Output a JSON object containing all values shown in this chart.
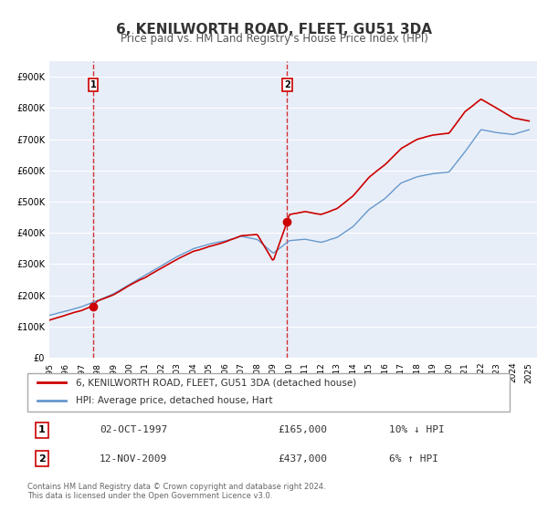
{
  "title": "6, KENILWORTH ROAD, FLEET, GU51 3DA",
  "subtitle": "Price paid vs. HM Land Registry's House Price Index (HPI)",
  "xlim": [
    1995.0,
    2025.5
  ],
  "ylim": [
    0,
    950000
  ],
  "yticks": [
    0,
    100000,
    200000,
    300000,
    400000,
    500000,
    600000,
    700000,
    800000,
    900000
  ],
  "ytick_labels": [
    "£0",
    "£100K",
    "£200K",
    "£300K",
    "£400K",
    "£500K",
    "£600K",
    "£700K",
    "£800K",
    "£900K"
  ],
  "xtick_years": [
    1995,
    1996,
    1997,
    1998,
    1999,
    2000,
    2001,
    2002,
    2003,
    2004,
    2005,
    2006,
    2007,
    2008,
    2009,
    2010,
    2011,
    2012,
    2013,
    2014,
    2015,
    2016,
    2017,
    2018,
    2019,
    2020,
    2021,
    2022,
    2023,
    2024,
    2025
  ],
  "price_color": "#cc0000",
  "hpi_color": "#6699cc",
  "bg_color": "#e8eef8",
  "grid_color": "#ffffff",
  "marker1_x": 1997.75,
  "marker1_y": 165000,
  "marker1_label": "1",
  "marker1_date": "02-OCT-1997",
  "marker1_price": "£165,000",
  "marker1_hpi": "10% ↓ HPI",
  "marker2_x": 2009.87,
  "marker2_y": 437000,
  "marker2_label": "2",
  "marker2_date": "12-NOV-2009",
  "marker2_price": "£437,000",
  "marker2_hpi": "6% ↑ HPI",
  "vline1_x": 1997.75,
  "vline2_x": 2009.87,
  "legend_line1": "6, KENILWORTH ROAD, FLEET, GU51 3DA (detached house)",
  "legend_line2": "HPI: Average price, detached house, Hart",
  "footnote1": "Contains HM Land Registry data © Crown copyright and database right 2024.",
  "footnote2": "This data is licensed under the Open Government Licence v3.0."
}
